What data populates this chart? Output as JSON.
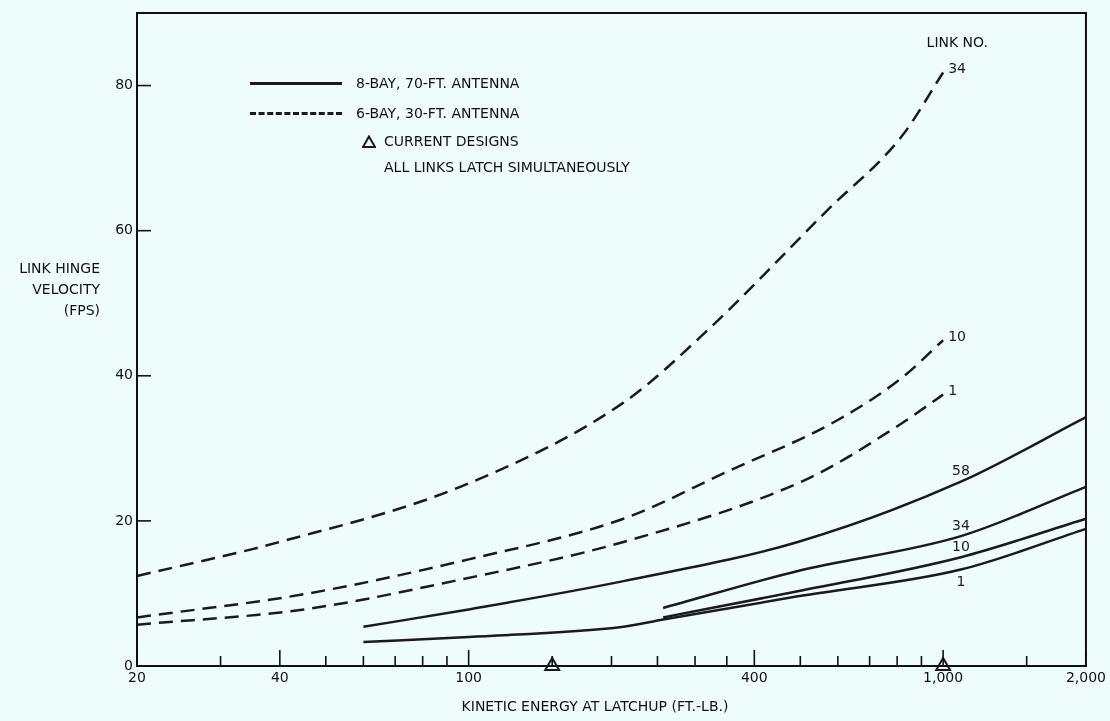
{
  "chart_data": {
    "type": "line",
    "xlabel": "KINETIC ENERGY AT LATCHUP (FT.-LB.)",
    "ylabel": "LINK HINGE VELOCITY (FPS)",
    "log": "x",
    "xlim": [
      20,
      2000
    ],
    "ylim": [
      0,
      90
    ],
    "xticks": [
      20,
      {
        "value": 30,
        "label": null
      },
      40,
      {
        "value": 50,
        "label": null
      },
      {
        "value": 60,
        "label": null
      },
      {
        "value": 70,
        "label": null
      },
      {
        "value": 80,
        "label": null
      },
      {
        "value": 90,
        "label": null
      },
      100,
      {
        "value": 150,
        "label": null
      },
      {
        "value": 200,
        "label": null
      },
      {
        "value": 250,
        "label": null
      },
      {
        "value": 300,
        "label": null
      },
      {
        "value": 350,
        "label": null
      },
      400,
      {
        "value": 500,
        "label": null
      },
      {
        "value": 600,
        "label": null
      },
      {
        "value": 700,
        "label": null
      },
      {
        "value": 800,
        "label": null
      },
      {
        "value": 900,
        "label": null
      },
      {
        "value": 1000,
        "label": "1,000"
      },
      {
        "value": 1500,
        "label": null
      },
      {
        "value": 2000,
        "label": "2,000"
      }
    ],
    "yticks": [
      0,
      20,
      40,
      60,
      80
    ],
    "legend": "top left",
    "annotations": [
      "8-BAY, 70-FT. ANTENNA",
      "6-BAY, 30-FT. ANTENNA",
      "ALL LINKS LATCH SIMULTANEOUSLY",
      "LINK NO."
    ],
    "series": [
      {
        "name": "58",
        "color": "#1a1a1a",
        "line_style": "solid",
        "x": [
          60,
          100,
          212,
          494,
          1090,
          2000
        ],
        "values": [
          5.4,
          7.8,
          11.7,
          17.1,
          25.4,
          34.3
        ]
      },
      {
        "name": "34",
        "color": "#1a1a1a",
        "line_style": "solid",
        "x": [
          257,
          494,
          1090,
          2000
        ],
        "values": [
          8.0,
          13.1,
          17.9,
          24.7
        ]
      },
      {
        "name": "10",
        "color": "#1a1a1a",
        "line_style": "solid",
        "x": [
          257,
          494,
          1090,
          2000
        ],
        "values": [
          6.7,
          10.3,
          15.0,
          20.3
        ]
      },
      {
        "name": "1",
        "color": "#1a1a1a",
        "line_style": "solid",
        "x": [
          60,
          100,
          212,
          257,
          494,
          1090,
          2000
        ],
        "values": [
          3.3,
          4.0,
          5.4,
          6.4,
          9.6,
          13.3,
          18.9
        ]
      },
      {
        "name": "34",
        "color": "#1a1a1a",
        "line_style": "dashed",
        "x": [
          20,
          40,
          96,
          212,
          312,
          572,
          818,
          1000
        ],
        "values": [
          12.4,
          17.1,
          24.7,
          36.3,
          45.7,
          62.9,
          73,
          81.8
        ]
      },
      {
        "name": "10",
        "color": "#1a1a1a",
        "line_style": "dashed",
        "x": [
          20,
          45,
          100,
          212,
          351,
          592,
          818,
          1000
        ],
        "values": [
          6.7,
          9.9,
          14.7,
          20.3,
          26.8,
          33.7,
          39.7,
          44.9
        ]
      },
      {
        "name": "1",
        "color": "#1a1a1a",
        "line_style": "dashed",
        "x": [
          20,
          45,
          96,
          212,
          518,
          790,
          1000
        ],
        "values": [
          5.7,
          7.8,
          11.9,
          17.1,
          25.8,
          32.8,
          37.4
        ]
      },
      {
        "name": "CURRENT DESIGNS",
        "type": "scatter",
        "marker": "triangle",
        "color": "#1a1a1a",
        "x": [
          150,
          1000
        ],
        "values": [
          0,
          0
        ]
      }
    ]
  }
}
